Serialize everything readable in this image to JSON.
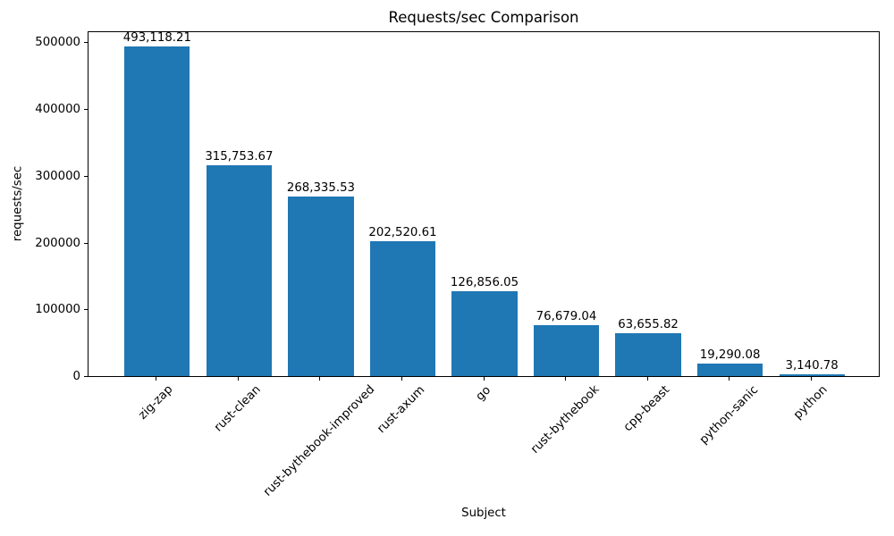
{
  "figure": {
    "background": "#ffffff",
    "text_color": "#000000",
    "spine_color": "#000000"
  },
  "chart_data": {
    "type": "bar",
    "title": "Requests/sec Comparison",
    "xlabel": "Subject",
    "ylabel": "requests/sec",
    "categories": [
      "zig-zap",
      "rust-clean",
      "rust-bythebook-improved",
      "rust-axum",
      "go",
      "rust-bythebook",
      "cpp-beast",
      "python-sanic",
      "python"
    ],
    "values": [
      493118.21,
      315753.67,
      268335.53,
      202520.61,
      126856.05,
      76679.04,
      63655.82,
      19290.08,
      3140.78
    ],
    "value_labels": [
      "493,118.21",
      "315,753.67",
      "268,335.53",
      "202,520.61",
      "126,856.05",
      "76,679.04",
      "63,655.82",
      "19,290.08",
      "3,140.78"
    ],
    "y_ticks": [
      0,
      100000,
      200000,
      300000,
      400000,
      500000
    ],
    "y_tick_labels": [
      "0",
      "100000",
      "200000",
      "300000",
      "400000",
      "500000"
    ],
    "ylim": [
      0,
      517774
    ],
    "xlim": [
      -0.84,
      8.84
    ],
    "bar_width_units": 0.8,
    "bar_color": "#1f77b4",
    "grid": false,
    "legend": null,
    "x_tick_rotation_deg": 45
  }
}
